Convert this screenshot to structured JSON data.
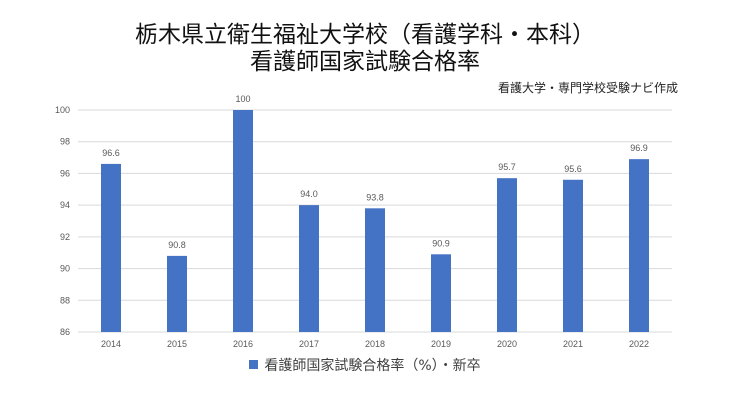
{
  "title_line1": "栃木県立衛生福祉大学校（看護学科・本科）",
  "title_line2": "看護師国家試験合格率",
  "source": "看護大学・専門学校受験ナビ作成",
  "colors": {
    "bar": "#4472c4",
    "grid": "#d9d9d9",
    "text": "#595959"
  },
  "chart_data": {
    "type": "bar",
    "categories": [
      "2014",
      "2015",
      "2016",
      "2017",
      "2018",
      "2019",
      "2020",
      "2021",
      "2022"
    ],
    "series": [
      {
        "name": "看護師国家試験合格率（%）・新卒",
        "values": [
          96.6,
          90.8,
          100,
          94.0,
          93.8,
          90.9,
          95.7,
          95.6,
          96.9
        ],
        "labels": [
          "96.6",
          "90.8",
          "100",
          "94.0",
          "93.8",
          "90.9",
          "95.7",
          "95.6",
          "96.9"
        ]
      }
    ],
    "ylim": [
      86,
      100
    ],
    "yticks": [
      "86",
      "88",
      "90",
      "92",
      "94",
      "96",
      "98",
      "100"
    ],
    "grid": true,
    "legend_position": "bottom"
  }
}
